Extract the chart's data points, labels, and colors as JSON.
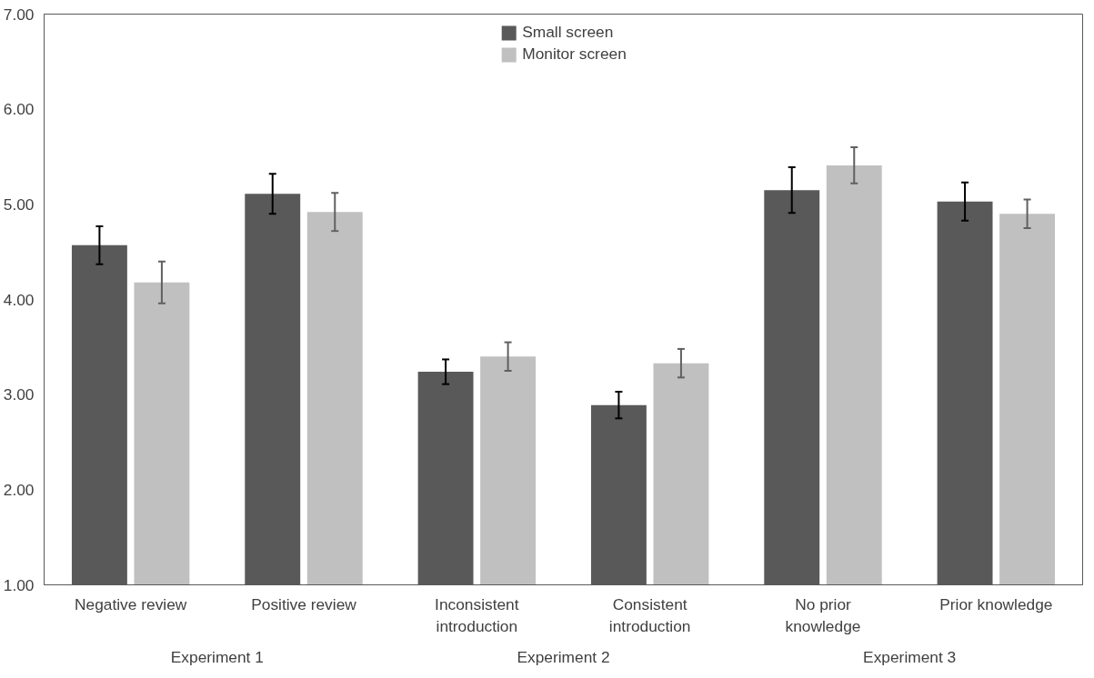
{
  "chart_data": {
    "type": "bar",
    "categories": [
      "Negative review",
      "Positive review",
      "Inconsistent\nintroduction",
      "Consistent\nintroduction",
      "No prior\nknowledge",
      "Prior knowledge"
    ],
    "series": [
      {
        "name": "Small screen",
        "color": "#595959",
        "values": [
          4.57,
          5.11,
          3.24,
          2.89,
          5.15,
          5.03
        ],
        "errors": [
          0.2,
          0.21,
          0.13,
          0.14,
          0.24,
          0.2
        ]
      },
      {
        "name": "Monitor screen",
        "color": "#c0c0c0",
        "values": [
          4.18,
          4.92,
          3.4,
          3.33,
          5.41,
          4.9
        ],
        "errors": [
          0.22,
          0.2,
          0.15,
          0.15,
          0.19,
          0.15
        ]
      }
    ],
    "annotations": [
      "Experiment 1",
      "Experiment 2",
      "Experiment 3"
    ],
    "ylim": [
      1,
      7
    ],
    "yticks": [
      {
        "value": 1,
        "label": "1.00"
      },
      {
        "value": 2,
        "label": "2.00"
      },
      {
        "value": 3,
        "label": "3.00"
      },
      {
        "value": 4,
        "label": "4.00"
      },
      {
        "value": 5,
        "label": "5.00"
      },
      {
        "value": 6,
        "label": "6.00"
      },
      {
        "value": 7,
        "label": "7.00"
      }
    ],
    "grid": false,
    "legend": "top"
  }
}
